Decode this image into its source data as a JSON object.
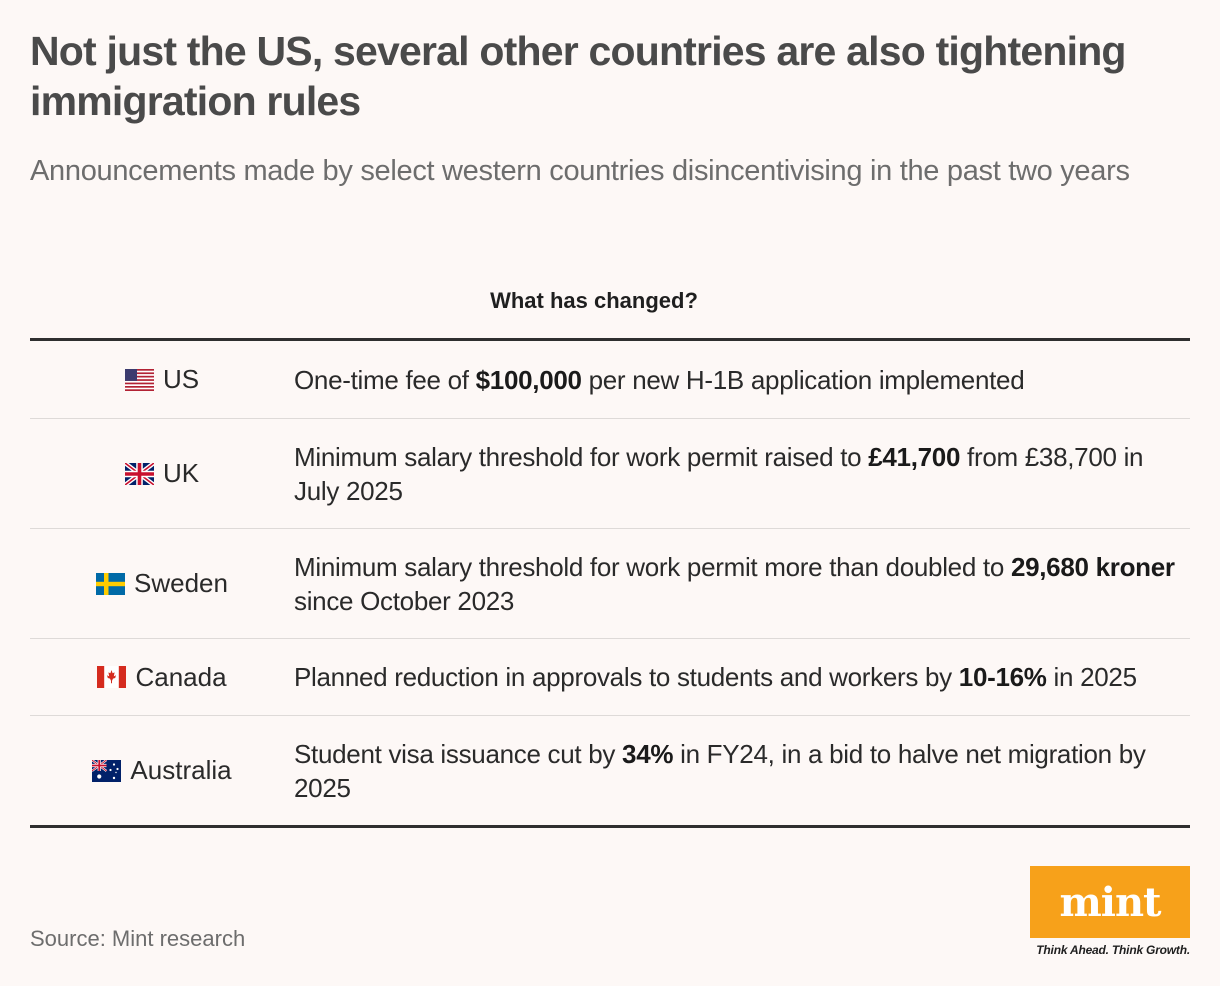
{
  "title": "Not just the US, several other countries are also tightening immigration rules",
  "subtitle": "Announcements made by select western countries disincentivising in the past two years",
  "column_header": "What has changed?",
  "rows": [
    {
      "country": "US",
      "flag_icon": "us-flag",
      "parts": [
        {
          "text": "One-time fee of ",
          "bold": false
        },
        {
          "text": "$100,000",
          "bold": true
        },
        {
          "text": " per new H-1B application implemented",
          "bold": false
        }
      ]
    },
    {
      "country": "UK",
      "flag_icon": "uk-flag",
      "parts": [
        {
          "text": "Minimum salary threshold for work permit raised to ",
          "bold": false
        },
        {
          "text": "£41,700",
          "bold": true
        },
        {
          "text": " from £38,700 in July 2025",
          "bold": false
        }
      ]
    },
    {
      "country": "Sweden",
      "flag_icon": "sweden-flag",
      "parts": [
        {
          "text": "Minimum salary threshold for work permit more than doubled to ",
          "bold": false
        },
        {
          "text": "29,680 kroner",
          "bold": true
        },
        {
          "text": " since October 2023",
          "bold": false
        }
      ]
    },
    {
      "country": "Canada",
      "flag_icon": "canada-flag",
      "parts": [
        {
          "text": "Planned reduction in approvals to students and workers by ",
          "bold": false
        },
        {
          "text": "10-16%",
          "bold": true
        },
        {
          "text": " in 2025",
          "bold": false
        }
      ]
    },
    {
      "country": "Australia",
      "flag_icon": "australia-flag",
      "parts": [
        {
          "text": "Student visa issuance cut by ",
          "bold": false
        },
        {
          "text": "34%",
          "bold": true
        },
        {
          "text": " in FY24, in a bid to halve net migration by 2025",
          "bold": false
        }
      ]
    }
  ],
  "source": "Source: Mint research",
  "logo": {
    "text": "mint",
    "tagline": "Think Ahead. Think Growth.",
    "color": "#f7a11a"
  }
}
